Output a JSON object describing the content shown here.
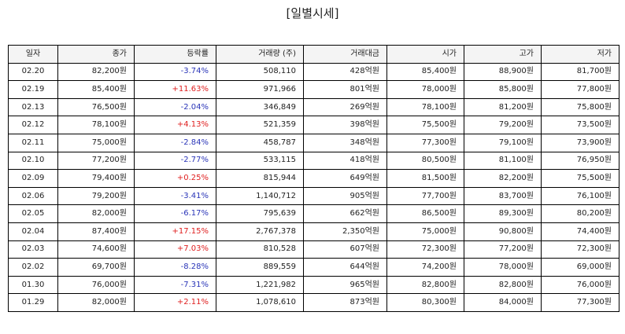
{
  "title": "[일별시세]",
  "columns": [
    "일자",
    "종가",
    "등락률",
    "거래량 (주)",
    "거래대금",
    "시가",
    "고가",
    "저가"
  ],
  "colors": {
    "up": "#e02020",
    "down": "#2a35b8"
  },
  "rows": [
    {
      "date": "02.20",
      "close": "82,200원",
      "change": "-3.74%",
      "dir": "down",
      "volume": "508,110",
      "amount": "428억원",
      "open": "85,400원",
      "high": "88,900원",
      "low": "81,700원"
    },
    {
      "date": "02.19",
      "close": "85,400원",
      "change": "+11.63%",
      "dir": "up",
      "volume": "971,966",
      "amount": "801억원",
      "open": "78,000원",
      "high": "85,800원",
      "low": "77,800원"
    },
    {
      "date": "02.13",
      "close": "76,500원",
      "change": "-2.04%",
      "dir": "down",
      "volume": "346,849",
      "amount": "269억원",
      "open": "78,100원",
      "high": "81,200원",
      "low": "75,800원"
    },
    {
      "date": "02.12",
      "close": "78,100원",
      "change": "+4.13%",
      "dir": "up",
      "volume": "521,359",
      "amount": "398억원",
      "open": "75,500원",
      "high": "79,200원",
      "low": "73,500원"
    },
    {
      "date": "02.11",
      "close": "75,000원",
      "change": "-2.84%",
      "dir": "down",
      "volume": "458,787",
      "amount": "348억원",
      "open": "77,300원",
      "high": "79,100원",
      "low": "73,900원"
    },
    {
      "date": "02.10",
      "close": "77,200원",
      "change": "-2.77%",
      "dir": "down",
      "volume": "533,115",
      "amount": "418억원",
      "open": "80,500원",
      "high": "81,100원",
      "low": "76,950원"
    },
    {
      "date": "02.09",
      "close": "79,400원",
      "change": "+0.25%",
      "dir": "up",
      "volume": "815,944",
      "amount": "649억원",
      "open": "81,500원",
      "high": "82,200원",
      "low": "75,500원"
    },
    {
      "date": "02.06",
      "close": "79,200원",
      "change": "-3.41%",
      "dir": "down",
      "volume": "1,140,712",
      "amount": "905억원",
      "open": "77,700원",
      "high": "83,700원",
      "low": "76,100원"
    },
    {
      "date": "02.05",
      "close": "82,000원",
      "change": "-6.17%",
      "dir": "down",
      "volume": "795,639",
      "amount": "662억원",
      "open": "86,500원",
      "high": "89,300원",
      "low": "80,200원"
    },
    {
      "date": "02.04",
      "close": "87,400원",
      "change": "+17.15%",
      "dir": "up",
      "volume": "2,767,378",
      "amount": "2,350억원",
      "open": "75,000원",
      "high": "90,800원",
      "low": "74,400원"
    },
    {
      "date": "02.03",
      "close": "74,600원",
      "change": "+7.03%",
      "dir": "up",
      "volume": "810,528",
      "amount": "607억원",
      "open": "72,300원",
      "high": "77,200원",
      "low": "72,300원"
    },
    {
      "date": "02.02",
      "close": "69,700원",
      "change": "-8.28%",
      "dir": "down",
      "volume": "889,559",
      "amount": "644억원",
      "open": "74,200원",
      "high": "78,000원",
      "low": "69,000원"
    },
    {
      "date": "01.30",
      "close": "76,000원",
      "change": "-7.31%",
      "dir": "down",
      "volume": "1,221,982",
      "amount": "965억원",
      "open": "82,800원",
      "high": "82,800원",
      "low": "76,000원"
    },
    {
      "date": "01.29",
      "close": "82,000원",
      "change": "+2.11%",
      "dir": "up",
      "volume": "1,078,610",
      "amount": "873억원",
      "open": "80,300원",
      "high": "84,000원",
      "low": "77,300원"
    }
  ]
}
